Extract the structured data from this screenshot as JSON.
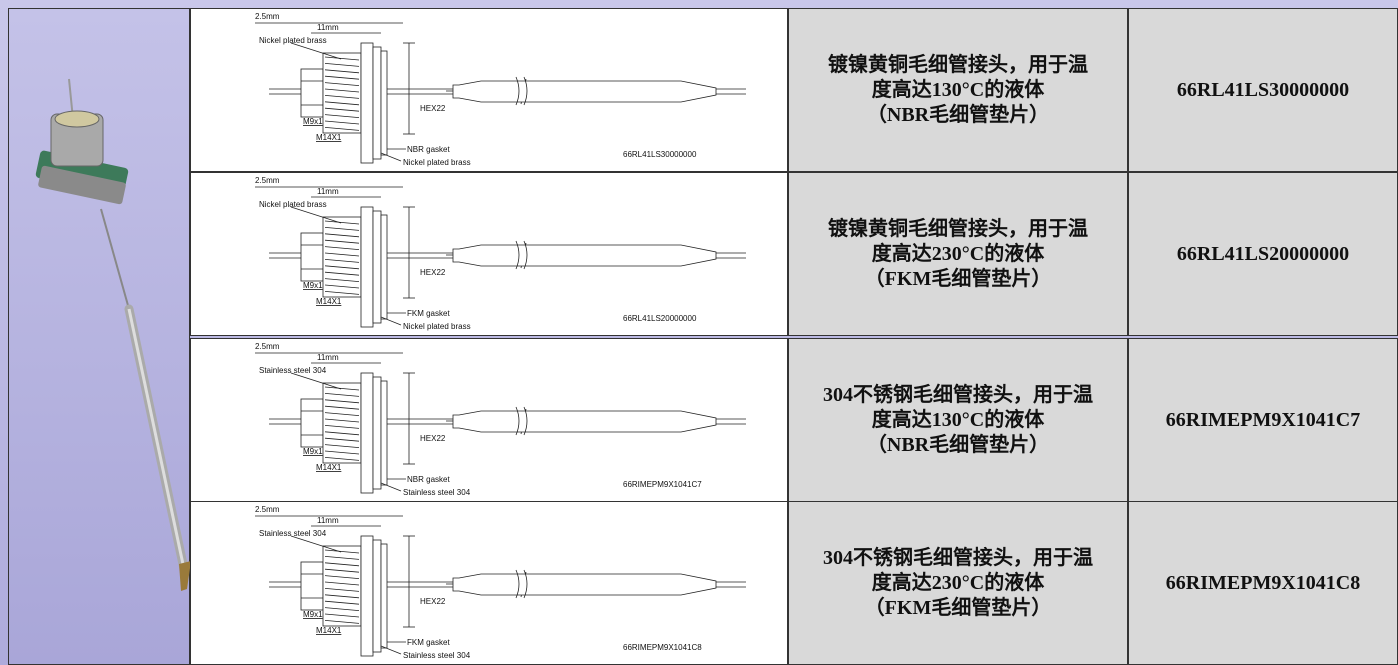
{
  "table": {
    "rows": [
      {
        "drawing": {
          "dim_outer": "2.5mm",
          "dim_inner": "11mm",
          "material_top": "Nickel plated brass",
          "hex": "HEX22",
          "thread_small": "M9x1",
          "thread_large": "M14X1",
          "gasket": "NBR gasket",
          "material_bottom": "Nickel plated brass",
          "code": "66RL41LS30000000"
        },
        "description": [
          "镀镍黄铜毛细管接头，用于温",
          "度高达130°C的液体",
          "（NBR毛细管垫片）"
        ],
        "part_number": "66RL41LS30000000"
      },
      {
        "drawing": {
          "dim_outer": "2.5mm",
          "dim_inner": "11mm",
          "material_top": "Nickel plated brass",
          "hex": "HEX22",
          "thread_small": "M9x1",
          "thread_large": "M14X1",
          "gasket": "FKM gasket",
          "material_bottom": "Nickel plated brass",
          "code": "66RL41LS20000000"
        },
        "description": [
          "镀镍黄铜毛细管接头，用于温",
          "度高达230°C的液体",
          "（FKM毛细管垫片）"
        ],
        "part_number": "66RL41LS20000000"
      },
      {
        "drawing": {
          "dim_outer": "2.5mm",
          "dim_inner": "11mm",
          "material_top": "Stainless steel 304",
          "hex": "HEX22",
          "thread_small": "M9x1",
          "thread_large": "M14X1",
          "gasket": "NBR gasket",
          "material_bottom": "Stainless steel 304",
          "code": "66RIMEPM9X1041C7"
        },
        "description": [
          "304不锈钢毛细管接头，用于温",
          "度高达130°C的液体",
          "（NBR毛细管垫片）"
        ],
        "part_number": "66RIMEPM9X1041C7"
      },
      {
        "drawing": {
          "dim_outer": "2.5mm",
          "dim_inner": "11mm",
          "material_top": "Stainless steel 304",
          "hex": "HEX22",
          "thread_small": "M9x1",
          "thread_large": "M14X1",
          "gasket": "FKM gasket",
          "material_bottom": "Stainless steel 304",
          "code": "66RIMEPM9X1041C8"
        },
        "description": [
          "304不锈钢毛细管接头，用于温",
          "度高达230°C的液体",
          "（FKM毛细管垫片）"
        ],
        "part_number": "66RIMEPM9X1041C8"
      }
    ]
  }
}
